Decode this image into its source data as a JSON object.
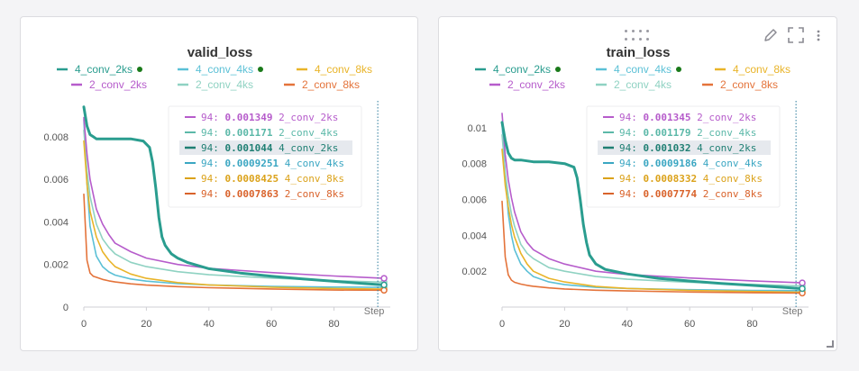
{
  "x_axis": {
    "range": [
      0,
      98
    ],
    "ticks": [
      0,
      20,
      40,
      60,
      80
    ],
    "label": "Step"
  },
  "hover_step": 94,
  "chart_data": [
    {
      "type": "line",
      "title": "valid_loss",
      "ylim": [
        0,
        0.0096
      ],
      "yticks": [
        "0",
        "0.002",
        "0.004",
        "0.006",
        "0.008"
      ],
      "xlabel": "Step",
      "legend": [
        {
          "name": "4_conv_2ks",
          "color": "#2a9d8f",
          "marker": true
        },
        {
          "name": "4_conv_4ks",
          "color": "#5bc0d6",
          "marker": true
        },
        {
          "name": "4_conv_8ks",
          "color": "#e9b429",
          "marker": false
        },
        {
          "name": "2_conv_2ks",
          "color": "#b65ccb",
          "marker": false
        },
        {
          "name": "2_conv_4ks",
          "color": "#8fd2c2",
          "marker": false
        },
        {
          "name": "2_conv_8ks",
          "color": "#e4733a",
          "marker": false
        }
      ],
      "tooltip": [
        {
          "step": "94",
          "value": "0.001349",
          "name": "2_conv_2ks",
          "color": "#b65ccb"
        },
        {
          "step": "94",
          "value": "0.001171",
          "name": "2_conv_4ks",
          "color": "#5bb8a8"
        },
        {
          "step": "94",
          "value": "0.001044",
          "name": "4_conv_2ks",
          "color": "#1f7f73",
          "highlight": true
        },
        {
          "step": "94",
          "value": "0.0009251",
          "name": "4_conv_4ks",
          "color": "#3aa6c2"
        },
        {
          "step": "94",
          "value": "0.0008425",
          "name": "4_conv_8ks",
          "color": "#dba21a"
        },
        {
          "step": "94",
          "value": "0.0007863",
          "name": "2_conv_8ks",
          "color": "#d9622a"
        }
      ],
      "series": [
        {
          "name": "4_conv_4ks",
          "color": "#5bc0d6",
          "width": 1.6,
          "x": [
            0,
            1,
            2,
            4,
            6,
            8,
            10,
            15,
            20,
            30,
            40,
            60,
            80,
            96
          ],
          "y": [
            0.0088,
            0.0058,
            0.0038,
            0.0024,
            0.0019,
            0.00165,
            0.0015,
            0.00132,
            0.00122,
            0.0011,
            0.00104,
            0.00097,
            0.00094,
            0.000925
          ]
        },
        {
          "name": "2_conv_4ks",
          "color": "#8fd2c2",
          "width": 1.6,
          "x": [
            0,
            1,
            2,
            4,
            6,
            8,
            10,
            15,
            20,
            30,
            40,
            60,
            80,
            96
          ],
          "y": [
            0.0083,
            0.0064,
            0.0052,
            0.0039,
            0.0032,
            0.0028,
            0.0025,
            0.0021,
            0.0019,
            0.00166,
            0.00152,
            0.00136,
            0.00124,
            0.00117
          ]
        },
        {
          "name": "2_conv_2ks",
          "color": "#b65ccb",
          "width": 1.6,
          "x": [
            0,
            1,
            2,
            4,
            6,
            8,
            10,
            15,
            20,
            30,
            40,
            60,
            80,
            96
          ],
          "y": [
            0.0089,
            0.0072,
            0.006,
            0.0046,
            0.0039,
            0.0034,
            0.003,
            0.0026,
            0.0023,
            0.002,
            0.00182,
            0.00162,
            0.00146,
            0.00135
          ]
        },
        {
          "name": "4_conv_8ks",
          "color": "#e9b429",
          "width": 1.6,
          "x": [
            0,
            1,
            2,
            4,
            6,
            8,
            10,
            15,
            20,
            30,
            40,
            60,
            80,
            96
          ],
          "y": [
            0.0078,
            0.0058,
            0.0045,
            0.0033,
            0.0026,
            0.0022,
            0.0019,
            0.00155,
            0.00135,
            0.00115,
            0.00104,
            0.00093,
            0.00087,
            0.00084
          ]
        },
        {
          "name": "2_conv_8ks",
          "color": "#e4733a",
          "width": 1.6,
          "x": [
            0,
            1,
            2,
            3,
            4,
            6,
            8,
            10,
            15,
            20,
            30,
            40,
            60,
            80,
            96
          ],
          "y": [
            0.0053,
            0.0022,
            0.0016,
            0.00145,
            0.0014,
            0.0013,
            0.00123,
            0.00118,
            0.00109,
            0.00103,
            0.00096,
            0.00091,
            0.00085,
            0.0008,
            0.00079
          ]
        },
        {
          "name": "4_conv_2ks",
          "color": "#2a9d8f",
          "width": 3,
          "x": [
            0,
            1,
            2,
            3,
            4,
            6,
            10,
            15,
            19,
            21,
            22,
            23,
            24,
            25,
            26,
            27,
            28,
            30,
            33,
            40,
            50,
            60,
            70,
            80,
            90,
            96
          ],
          "y": [
            0.0094,
            0.0085,
            0.0081,
            0.008,
            0.0079,
            0.0079,
            0.0079,
            0.0079,
            0.0078,
            0.0075,
            0.0068,
            0.0056,
            0.0042,
            0.0033,
            0.0029,
            0.0027,
            0.0025,
            0.0023,
            0.0021,
            0.0018,
            0.0016,
            0.00145,
            0.00132,
            0.00121,
            0.0011,
            0.00104
          ]
        }
      ]
    },
    {
      "type": "line",
      "title": "train_loss",
      "ylim": [
        0,
        0.0114
      ],
      "yticks": [
        "0.002",
        "0.004",
        "0.006",
        "0.008",
        "0.01"
      ],
      "xlabel": "Step",
      "legend": [
        {
          "name": "4_conv_2ks",
          "color": "#2a9d8f",
          "marker": true
        },
        {
          "name": "4_conv_4ks",
          "color": "#5bc0d6",
          "marker": true
        },
        {
          "name": "4_conv_8ks",
          "color": "#e9b429",
          "marker": false
        },
        {
          "name": "2_conv_2ks",
          "color": "#b65ccb",
          "marker": false
        },
        {
          "name": "2_conv_4ks",
          "color": "#8fd2c2",
          "marker": false
        },
        {
          "name": "2_conv_8ks",
          "color": "#e4733a",
          "marker": false
        }
      ],
      "tooltip": [
        {
          "step": "94",
          "value": "0.001345",
          "name": "2_conv_2ks",
          "color": "#b65ccb"
        },
        {
          "step": "94",
          "value": "0.001179",
          "name": "2_conv_4ks",
          "color": "#5bb8a8"
        },
        {
          "step": "94",
          "value": "0.001032",
          "name": "4_conv_2ks",
          "color": "#1f7f73",
          "highlight": true
        },
        {
          "step": "94",
          "value": "0.0009186",
          "name": "4_conv_4ks",
          "color": "#3aa6c2"
        },
        {
          "step": "94",
          "value": "0.0008332",
          "name": "4_conv_8ks",
          "color": "#dba21a"
        },
        {
          "step": "94",
          "value": "0.0007774",
          "name": "2_conv_8ks",
          "color": "#d9622a"
        }
      ],
      "series": [
        {
          "name": "4_conv_4ks",
          "color": "#5bc0d6",
          "width": 1.6,
          "x": [
            0,
            1,
            2,
            3,
            4,
            6,
            8,
            10,
            15,
            20,
            30,
            40,
            60,
            80,
            96
          ],
          "y": [
            0.0102,
            0.0075,
            0.0052,
            0.004,
            0.0032,
            0.0024,
            0.002,
            0.0017,
            0.0014,
            0.00125,
            0.0011,
            0.00104,
            0.00097,
            0.00093,
            0.00092
          ]
        },
        {
          "name": "2_conv_4ks",
          "color": "#8fd2c2",
          "width": 1.6,
          "x": [
            0,
            1,
            2,
            3,
            4,
            6,
            8,
            10,
            15,
            20,
            30,
            40,
            60,
            80,
            96
          ],
          "y": [
            0.0096,
            0.0075,
            0.0062,
            0.0052,
            0.0045,
            0.0035,
            0.003,
            0.0027,
            0.0022,
            0.002,
            0.0017,
            0.00155,
            0.00138,
            0.00126,
            0.00118
          ]
        },
        {
          "name": "2_conv_2ks",
          "color": "#b65ccb",
          "width": 1.6,
          "x": [
            0,
            1,
            2,
            3,
            4,
            6,
            8,
            10,
            15,
            20,
            30,
            40,
            60,
            80,
            96
          ],
          "y": [
            0.0108,
            0.0085,
            0.0071,
            0.0061,
            0.0053,
            0.0042,
            0.0036,
            0.0032,
            0.0027,
            0.0024,
            0.002,
            0.00182,
            0.00162,
            0.00146,
            0.00135
          ]
        },
        {
          "name": "4_conv_8ks",
          "color": "#e9b429",
          "width": 1.6,
          "x": [
            0,
            1,
            2,
            3,
            4,
            6,
            8,
            10,
            15,
            20,
            30,
            40,
            60,
            80,
            96
          ],
          "y": [
            0.0088,
            0.0068,
            0.0056,
            0.0046,
            0.0039,
            0.003,
            0.0024,
            0.002,
            0.0016,
            0.0014,
            0.00115,
            0.00104,
            0.00093,
            0.00087,
            0.00083
          ]
        },
        {
          "name": "2_conv_8ks",
          "color": "#e4733a",
          "width": 1.6,
          "x": [
            0,
            1,
            2,
            3,
            4,
            6,
            8,
            10,
            15,
            20,
            30,
            40,
            60,
            80,
            96
          ],
          "y": [
            0.0059,
            0.0028,
            0.0018,
            0.0015,
            0.00138,
            0.00128,
            0.00121,
            0.00116,
            0.00107,
            0.00101,
            0.00094,
            0.0009,
            0.00084,
            0.0008,
            0.00078
          ]
        },
        {
          "name": "4_conv_2ks",
          "color": "#2a9d8f",
          "width": 3,
          "x": [
            0,
            1,
            2,
            3,
            4,
            6,
            10,
            15,
            20,
            23,
            24,
            25,
            26,
            27,
            28,
            30,
            33,
            40,
            50,
            60,
            70,
            80,
            90,
            96
          ],
          "y": [
            0.0103,
            0.0093,
            0.0086,
            0.0083,
            0.0082,
            0.0082,
            0.0081,
            0.0081,
            0.008,
            0.0078,
            0.0072,
            0.006,
            0.0046,
            0.0036,
            0.0029,
            0.0024,
            0.0021,
            0.00185,
            0.0016,
            0.00145,
            0.00132,
            0.00121,
            0.0011,
            0.00103
          ]
        }
      ]
    }
  ]
}
